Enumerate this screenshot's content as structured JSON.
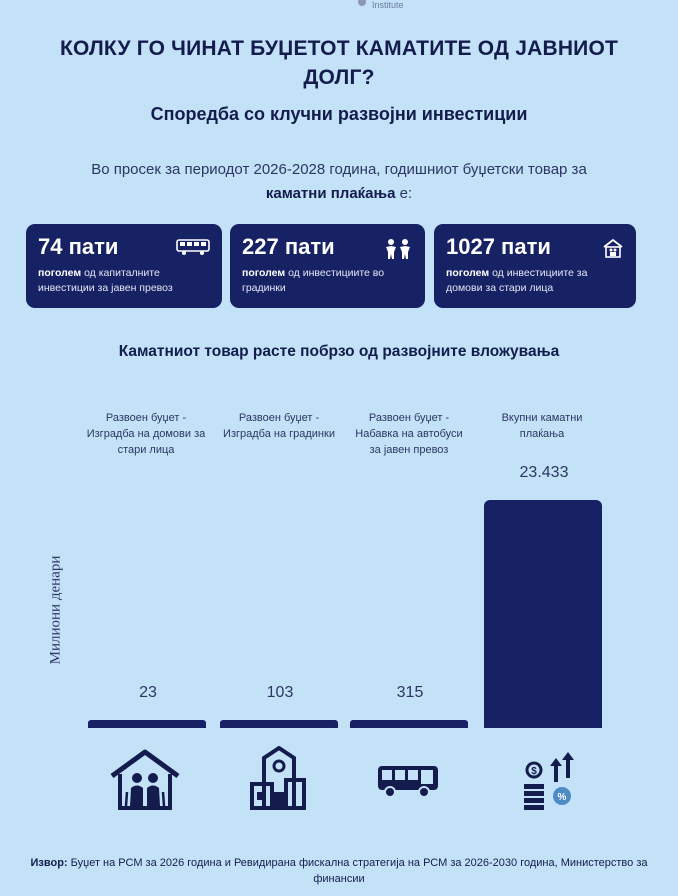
{
  "header": {
    "logo_fragment": "Institute",
    "title": "КОЛКУ ГО ЧИНАТ БУЏЕТОТ КАМАТИТЕ ОД ЈАВНИОТ ДОЛГ?",
    "subtitle": "Споредба со клучни развојни инвестиции",
    "intro_prefix": "Во просек за периодот 2026-2028 година, годишниот буџетски товар за",
    "intro_bold": "каматни плаќања",
    "intro_suffix": "е:"
  },
  "cards": [
    {
      "title": "74 пати",
      "bold": "поголем",
      "text": "од капиталните инвестиции за јавен превоз",
      "icon": "bus-icon"
    },
    {
      "title": "227 пати",
      "bold": "поголем",
      "text": "од инвестициите во градинки",
      "icon": "children-icon"
    },
    {
      "title": "1027 пати",
      "bold": "поголем",
      "text": "од инвестициите за домови за стари лица",
      "icon": "elderly-home-icon"
    }
  ],
  "section_heading": "Каматниот товар расте побрзо од развојните вложувања",
  "chart_data": {
    "type": "bar",
    "categories": [
      "Развоен буџет - Изградба на домови за стари лица",
      "Развоен буџет - Изградба на градинки",
      "Развоен буџет - Набавка на автобуси за јавен превоз",
      "Вкупни каматни плаќања"
    ],
    "values": [
      23,
      103,
      315,
      23433
    ],
    "value_labels": [
      "23",
      "103",
      "315",
      "23.433"
    ],
    "ylabel": "Милиони денари",
    "bar_color": "#172264",
    "icons": [
      "elderly-home-icon",
      "kindergarten-icon",
      "bus-icon",
      "money-growth-icon"
    ]
  },
  "source": {
    "label": "Извор:",
    "text": "Буџет на РСМ за 2026 година и Ревидирана фискална стратегија на РСМ за 2026-2030 година, Министерство за финансии"
  },
  "colors": {
    "background": "#c3e2f7",
    "navy": "#172264",
    "text": "#141c4e"
  }
}
